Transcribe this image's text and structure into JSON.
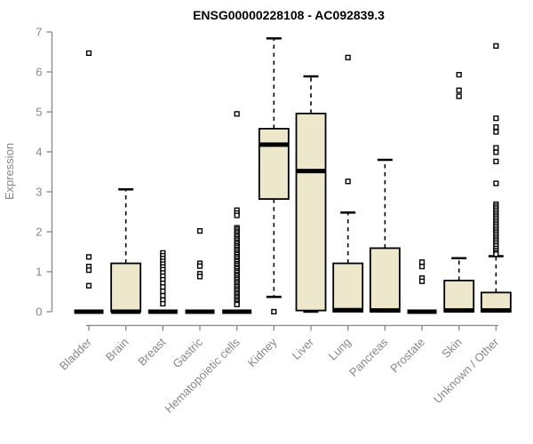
{
  "chart_data": {
    "type": "boxplot",
    "title": "ENSG00000228108 - AC092839.3",
    "ylabel": "Expression",
    "xlabel": "",
    "ylim": [
      0,
      7
    ],
    "yticks": [
      0,
      1,
      2,
      3,
      4,
      5,
      6,
      7
    ],
    "grid": false,
    "legend": "none",
    "categories": [
      "Bladder",
      "Brain",
      "Breast",
      "Gastric",
      "Hematopoietic cells",
      "Kidney",
      "Liver",
      "Lung",
      "Pancreas",
      "Prostate",
      "Skin",
      "Unknown / Other"
    ],
    "series": [
      {
        "name": "Bladder",
        "q1": 0,
        "median": 0,
        "q3": 0,
        "whisker_low": 0,
        "whisker_high": 0,
        "outliers": [
          6.47,
          1.37,
          1.13,
          1.04,
          0.65
        ]
      },
      {
        "name": "Brain",
        "q1": 0,
        "median": 0,
        "q3": 1.21,
        "whisker_low": 0,
        "whisker_high": 3.06,
        "outliers": []
      },
      {
        "name": "Breast",
        "q1": 0,
        "median": 0,
        "q3": 0,
        "whisker_low": 0,
        "whisker_high": 0,
        "outliers": [
          1.47,
          1.4,
          1.33,
          1.26,
          1.19,
          1.12,
          1.05,
          0.97,
          0.89,
          0.8,
          0.71,
          0.62,
          0.51,
          0.4,
          0.29,
          0.2
        ]
      },
      {
        "name": "Gastric",
        "q1": 0,
        "median": 0,
        "q3": 0,
        "whisker_low": 0,
        "whisker_high": 0,
        "outliers": [
          2.02,
          1.21,
          1.14,
          0.95,
          0.88
        ]
      },
      {
        "name": "Hematopoietic cells",
        "q1": 0,
        "median": 0,
        "q3": 0,
        "whisker_low": 0,
        "whisker_high": 0,
        "outliers": [
          4.95,
          2.54,
          2.47,
          2.41,
          2.1,
          2.06,
          2.01,
          1.97,
          1.92,
          1.88,
          1.83,
          1.79,
          1.74,
          1.7,
          1.65,
          1.61,
          1.56,
          1.52,
          1.47,
          1.43,
          1.38,
          1.34,
          1.29,
          1.25,
          1.2,
          1.16,
          1.11,
          1.07,
          1.02,
          0.98,
          0.93,
          0.89,
          0.84,
          0.8,
          0.75,
          0.71,
          0.66,
          0.62,
          0.57,
          0.53,
          0.48,
          0.44,
          0.39,
          0.35,
          0.3,
          0.26,
          0.21,
          0.18
        ]
      },
      {
        "name": "Kidney",
        "q1": 2.82,
        "median": 4.18,
        "q3": 4.58,
        "whisker_low": 0.37,
        "whisker_high": 6.84,
        "outliers": [
          0.0
        ]
      },
      {
        "name": "Liver",
        "q1": 0.03,
        "median": 3.52,
        "q3": 4.96,
        "whisker_low": 0.0,
        "whisker_high": 5.89,
        "outliers": []
      },
      {
        "name": "Lung",
        "q1": 0,
        "median": 0.04,
        "q3": 1.21,
        "whisker_low": 0,
        "whisker_high": 2.48,
        "outliers": [
          3.26,
          6.36
        ]
      },
      {
        "name": "Pancreas",
        "q1": 0,
        "median": 0.03,
        "q3": 1.59,
        "whisker_low": 0,
        "whisker_high": 3.8,
        "outliers": []
      },
      {
        "name": "Prostate",
        "q1": 0,
        "median": 0,
        "q3": 0,
        "whisker_low": 0,
        "whisker_high": 0,
        "outliers": [
          1.24,
          1.13,
          0.84,
          0.76
        ]
      },
      {
        "name": "Skin",
        "q1": 0,
        "median": 0.03,
        "q3": 0.78,
        "whisker_low": 0,
        "whisker_high": 1.34,
        "outliers": [
          5.93,
          5.54,
          5.39
        ]
      },
      {
        "name": "Unknown / Other",
        "q1": 0,
        "median": 0.03,
        "q3": 0.48,
        "whisker_low": 0,
        "whisker_high": 1.39,
        "outliers": [
          6.65,
          4.84,
          4.62,
          4.5,
          4.1,
          3.99,
          3.76,
          3.21,
          2.69,
          2.64,
          2.59,
          2.54,
          2.49,
          2.44,
          2.39,
          2.34,
          2.29,
          2.24,
          2.19,
          2.14,
          2.09,
          2.04,
          1.99,
          1.94,
          1.89,
          1.84,
          1.79,
          1.74,
          1.69,
          1.64,
          1.58,
          1.53,
          1.48,
          1.44
        ]
      }
    ],
    "colors": {
      "box_fill": "#EDE8CC",
      "box_border": "#000000",
      "median": "#000000",
      "whisker": "#000000",
      "outlier_stroke": "#000000",
      "outlier_fill": "#ffffff",
      "axis": "#878787",
      "tick_label": "#878787",
      "title": "#000000",
      "background": "#ffffff"
    }
  }
}
